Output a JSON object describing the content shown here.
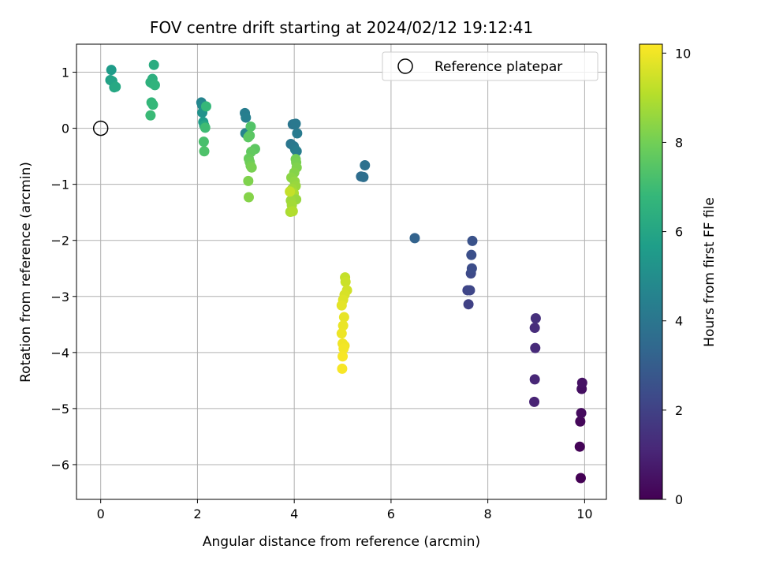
{
  "chart_data": {
    "type": "scatter",
    "title": "FOV centre drift starting at 2024/02/12 19:12:41",
    "xlabel": "Angular distance from reference (arcmin)",
    "ylabel": "Rotation from reference (arcmin)",
    "xlim": [
      -0.5,
      10.45
    ],
    "ylim": [
      -6.62,
      1.5
    ],
    "xticks": [
      0,
      2,
      4,
      6,
      8,
      10
    ],
    "yticks": [
      1,
      0,
      -1,
      -2,
      -3,
      -4,
      -5,
      -6
    ],
    "xtick_labels": [
      "0",
      "2",
      "4",
      "6",
      "8",
      "10"
    ],
    "ytick_labels": [
      "1",
      "0",
      "−1",
      "−2",
      "−3",
      "−4",
      "−5",
      "−6"
    ],
    "grid": true,
    "legend": {
      "position": "upper right",
      "label": "Reference platepar"
    },
    "reference_point": {
      "x": 0,
      "y": 0
    },
    "colorbar": {
      "label": "Hours from first FF file",
      "range": [
        0,
        10.2
      ],
      "ticks": [
        0,
        2,
        4,
        6,
        8,
        10
      ],
      "tick_labels": [
        "0",
        "2",
        "4",
        "6",
        "8",
        "10"
      ],
      "colormap": [
        "#440154",
        "#482878",
        "#3e4989",
        "#31688e",
        "#26828e",
        "#1f9e89",
        "#35b779",
        "#6ece58",
        "#b5de2b",
        "#fde725"
      ]
    },
    "points": [
      {
        "x": 9.92,
        "y": -6.24,
        "c": 0.0
      },
      {
        "x": 9.9,
        "y": -5.68,
        "c": 0.1
      },
      {
        "x": 9.91,
        "y": -5.23,
        "c": 0.2
      },
      {
        "x": 9.93,
        "y": -5.08,
        "c": 0.3
      },
      {
        "x": 9.94,
        "y": -4.65,
        "c": 0.4
      },
      {
        "x": 9.95,
        "y": -4.54,
        "c": 0.5
      },
      {
        "x": 8.96,
        "y": -4.88,
        "c": 1.0
      },
      {
        "x": 8.97,
        "y": -4.48,
        "c": 1.1
      },
      {
        "x": 8.98,
        "y": -3.92,
        "c": 1.2
      },
      {
        "x": 8.97,
        "y": -3.56,
        "c": 1.3
      },
      {
        "x": 8.99,
        "y": -3.39,
        "c": 1.4
      },
      {
        "x": 7.6,
        "y": -3.14,
        "c": 2.0
      },
      {
        "x": 7.58,
        "y": -2.89,
        "c": 2.1
      },
      {
        "x": 7.63,
        "y": -2.89,
        "c": 2.2
      },
      {
        "x": 7.65,
        "y": -2.59,
        "c": 2.3
      },
      {
        "x": 7.67,
        "y": -2.5,
        "c": 2.4
      },
      {
        "x": 7.66,
        "y": -2.26,
        "c": 2.5
      },
      {
        "x": 7.68,
        "y": -2.01,
        "c": 2.6
      },
      {
        "x": 6.49,
        "y": -1.96,
        "c": 3.2
      },
      {
        "x": 5.38,
        "y": -0.86,
        "c": 3.6
      },
      {
        "x": 5.43,
        "y": -0.87,
        "c": 3.7
      },
      {
        "x": 5.46,
        "y": -0.66,
        "c": 3.8
      },
      {
        "x": 3.97,
        "y": 0.07,
        "c": 4.0
      },
      {
        "x": 4.03,
        "y": 0.08,
        "c": 4.1
      },
      {
        "x": 4.06,
        "y": -0.09,
        "c": 4.2
      },
      {
        "x": 3.93,
        "y": -0.28,
        "c": 4.0
      },
      {
        "x": 3.99,
        "y": -0.32,
        "c": 4.1
      },
      {
        "x": 4.02,
        "y": -0.38,
        "c": 4.2
      },
      {
        "x": 4.05,
        "y": -0.41,
        "c": 4.3
      },
      {
        "x": 2.98,
        "y": 0.27,
        "c": 4.3
      },
      {
        "x": 3.0,
        "y": 0.19,
        "c": 4.4
      },
      {
        "x": 2.99,
        "y": -0.09,
        "c": 4.6
      },
      {
        "x": 2.08,
        "y": 0.46,
        "c": 4.6
      },
      {
        "x": 2.1,
        "y": 0.41,
        "c": 4.8
      },
      {
        "x": 2.1,
        "y": 0.28,
        "c": 5.2
      },
      {
        "x": 2.12,
        "y": 0.11,
        "c": 5.6
      },
      {
        "x": 2.14,
        "y": 0.05,
        "c": 6.0
      },
      {
        "x": 2.18,
        "y": 0.39,
        "c": 6.8
      },
      {
        "x": 2.16,
        "y": 0.01,
        "c": 7.0
      },
      {
        "x": 2.13,
        "y": -0.24,
        "c": 7.2
      },
      {
        "x": 2.14,
        "y": -0.41,
        "c": 7.3
      },
      {
        "x": 0.22,
        "y": 1.04,
        "c": 5.6
      },
      {
        "x": 0.2,
        "y": 0.86,
        "c": 5.8
      },
      {
        "x": 0.24,
        "y": 0.84,
        "c": 5.9
      },
      {
        "x": 0.28,
        "y": 0.73,
        "c": 6.0
      },
      {
        "x": 0.31,
        "y": 0.74,
        "c": 6.1
      },
      {
        "x": 1.1,
        "y": 1.13,
        "c": 6.3
      },
      {
        "x": 1.07,
        "y": 0.88,
        "c": 6.4
      },
      {
        "x": 1.03,
        "y": 0.82,
        "c": 6.5
      },
      {
        "x": 1.07,
        "y": 0.8,
        "c": 6.5
      },
      {
        "x": 1.12,
        "y": 0.77,
        "c": 6.6
      },
      {
        "x": 1.05,
        "y": 0.46,
        "c": 6.7
      },
      {
        "x": 1.08,
        "y": 0.42,
        "c": 6.8
      },
      {
        "x": 1.03,
        "y": 0.23,
        "c": 6.9
      },
      {
        "x": 3.1,
        "y": 0.03,
        "c": 7.4
      },
      {
        "x": 3.08,
        "y": -0.13,
        "c": 7.5
      },
      {
        "x": 3.05,
        "y": -0.16,
        "c": 7.6
      },
      {
        "x": 3.19,
        "y": -0.37,
        "c": 7.6
      },
      {
        "x": 3.11,
        "y": -0.42,
        "c": 7.7
      },
      {
        "x": 3.06,
        "y": -0.54,
        "c": 7.8
      },
      {
        "x": 3.08,
        "y": -0.6,
        "c": 7.9
      },
      {
        "x": 3.1,
        "y": -0.67,
        "c": 8.0
      },
      {
        "x": 3.12,
        "y": -0.7,
        "c": 8.1
      },
      {
        "x": 3.05,
        "y": -0.94,
        "c": 8.2
      },
      {
        "x": 3.06,
        "y": -1.23,
        "c": 8.3
      },
      {
        "x": 4.03,
        "y": -0.55,
        "c": 8.0
      },
      {
        "x": 4.04,
        "y": -0.61,
        "c": 8.1
      },
      {
        "x": 4.05,
        "y": -0.7,
        "c": 8.2
      },
      {
        "x": 4.0,
        "y": -0.79,
        "c": 8.3
      },
      {
        "x": 3.94,
        "y": -0.88,
        "c": 8.4
      },
      {
        "x": 4.01,
        "y": -0.95,
        "c": 8.5
      },
      {
        "x": 4.03,
        "y": -1.03,
        "c": 8.6
      },
      {
        "x": 3.96,
        "y": -1.08,
        "c": 8.7
      },
      {
        "x": 3.92,
        "y": -1.12,
        "c": 8.8
      },
      {
        "x": 3.99,
        "y": -1.16,
        "c": 8.9
      },
      {
        "x": 4.04,
        "y": -1.27,
        "c": 8.6
      },
      {
        "x": 3.93,
        "y": -1.29,
        "c": 8.7
      },
      {
        "x": 3.95,
        "y": -1.37,
        "c": 8.8
      },
      {
        "x": 3.92,
        "y": -1.49,
        "c": 8.9
      },
      {
        "x": 3.97,
        "y": -1.48,
        "c": 9.0
      },
      {
        "x": 3.91,
        "y": -1.13,
        "c": 9.3
      },
      {
        "x": 5.05,
        "y": -2.66,
        "c": 9.3
      },
      {
        "x": 5.06,
        "y": -2.74,
        "c": 9.4
      },
      {
        "x": 5.09,
        "y": -2.89,
        "c": 9.5
      },
      {
        "x": 5.04,
        "y": -2.97,
        "c": 9.6
      },
      {
        "x": 5.01,
        "y": -3.06,
        "c": 9.7
      },
      {
        "x": 4.98,
        "y": -3.16,
        "c": 9.8
      },
      {
        "x": 5.03,
        "y": -3.37,
        "c": 9.85
      },
      {
        "x": 5.01,
        "y": -3.52,
        "c": 9.9
      },
      {
        "x": 4.98,
        "y": -3.66,
        "c": 9.95
      },
      {
        "x": 5.0,
        "y": -3.84,
        "c": 10.0
      },
      {
        "x": 5.04,
        "y": -3.88,
        "c": 10.0
      },
      {
        "x": 5.02,
        "y": -3.93,
        "c": 10.05
      },
      {
        "x": 5.0,
        "y": -4.07,
        "c": 10.1
      },
      {
        "x": 4.99,
        "y": -4.29,
        "c": 10.1
      }
    ]
  }
}
